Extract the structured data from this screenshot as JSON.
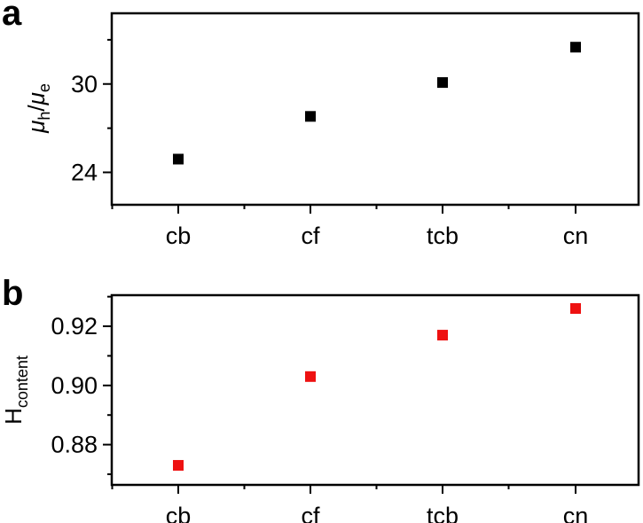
{
  "chart_data": [
    {
      "panel_label": "a",
      "type": "scatter",
      "categories": [
        "cb",
        "cf",
        "tcb",
        "cn"
      ],
      "values": [
        24.9,
        27.8,
        30.1,
        32.5
      ],
      "ylabel": {
        "symbol_1": "μ",
        "sub_1": "h",
        "slash": "/",
        "symbol_2": "μ",
        "sub_2": "e"
      },
      "ylim": [
        21.8,
        34.8
      ],
      "yticks": [
        24,
        30
      ],
      "ytick_labels": [
        "24",
        "30"
      ],
      "yminor_ticks": [
        21,
        27,
        33
      ],
      "grid": false,
      "marker_color": "#000000"
    },
    {
      "panel_label": "b",
      "type": "scatter",
      "categories": [
        "cb",
        "cf",
        "tcb",
        "cn"
      ],
      "values": [
        0.873,
        0.903,
        0.917,
        0.926
      ],
      "ylabel": {
        "main": "H",
        "sub": "content"
      },
      "ylim": [
        0.8664,
        0.9305
      ],
      "yticks": [
        0.88,
        0.9,
        0.92
      ],
      "ytick_labels": [
        "0.88",
        "0.90",
        "0.92"
      ],
      "yminor_ticks": [
        0.87,
        0.89,
        0.91,
        0.93
      ],
      "grid": false,
      "marker_color": "#ee1111"
    }
  ]
}
